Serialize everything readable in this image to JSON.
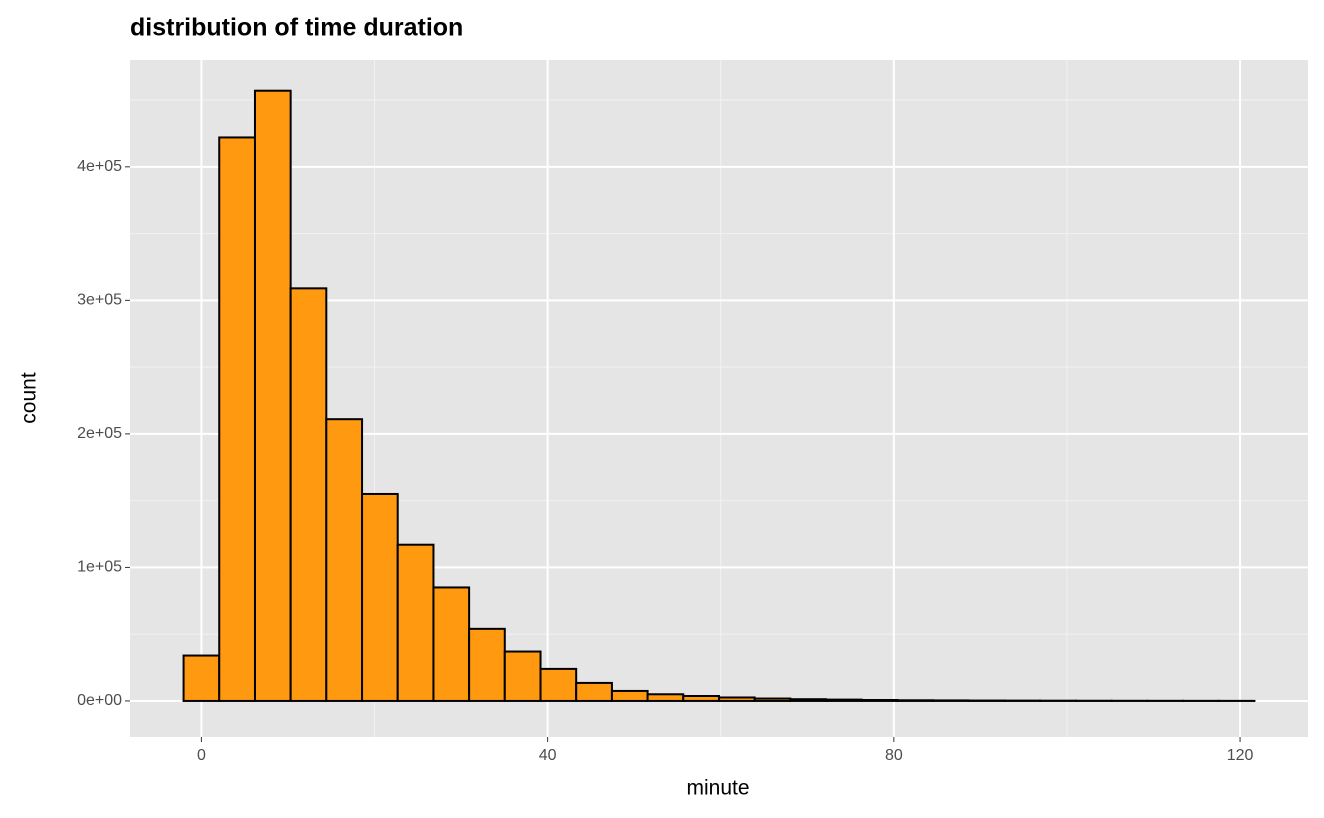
{
  "chart_data": {
    "type": "histogram",
    "title": "distribution of time duration",
    "x_label": "minute",
    "y_label": "count",
    "bins": [
      -2.06,
      2.06,
      6.19,
      10.31,
      14.43,
      18.56,
      22.68,
      26.81,
      30.93,
      35.05,
      39.18,
      43.3,
      47.43,
      51.55,
      55.67,
      59.8,
      63.92,
      68.04,
      72.17,
      76.29,
      80.42,
      84.54,
      88.66,
      92.79,
      96.91,
      101.04,
      105.16,
      109.28,
      113.41,
      117.53,
      121.66
    ],
    "counts": [
      34000,
      422000,
      457000,
      309000,
      211000,
      155000,
      117000,
      85000,
      54000,
      37000,
      24000,
      13500,
      7500,
      5000,
      3700,
      2600,
      1800,
      1300,
      1000,
      700,
      500,
      400,
      300,
      250,
      200,
      150,
      120,
      100,
      80,
      60
    ],
    "color": "#ff990f",
    "edge_color": "#000000",
    "xlim": [
      -8.25,
      127.85
    ],
    "xticks": [
      0,
      40,
      80,
      120
    ],
    "x_minor_grid": [
      20,
      60,
      100
    ],
    "ylim": [
      -27000,
      480000
    ],
    "yticks": [
      {
        "value": 0,
        "label": "0e+00"
      },
      {
        "value": 100000,
        "label": "1e+05"
      },
      {
        "value": 200000,
        "label": "2e+05"
      },
      {
        "value": 300000,
        "label": "3e+05"
      },
      {
        "value": 400000,
        "label": "4e+05"
      }
    ],
    "y_minor_grid": [
      50000,
      150000,
      250000,
      350000,
      450000
    ],
    "grid": true
  }
}
